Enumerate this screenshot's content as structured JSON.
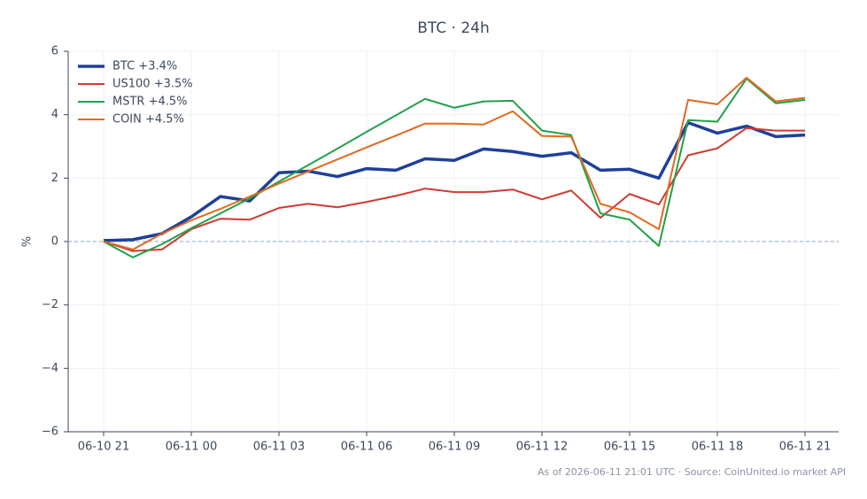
{
  "chart_data": {
    "type": "line",
    "title": "BTC · 24h",
    "ylabel": "%",
    "footnote": "As of 2026-06-11 21:01 UTC · Source: CoinUnited.io market API",
    "categories": [
      "06-10 21",
      null,
      null,
      "06-11 00",
      null,
      null,
      "06-11 03",
      null,
      null,
      "06-11 06",
      null,
      null,
      "06-11 09",
      null,
      null,
      "06-11 12",
      null,
      null,
      "06-11 15",
      null,
      null,
      "06-11 18",
      null,
      null,
      "06-11 21"
    ],
    "ylim": [
      -6,
      6
    ],
    "yticks": [
      {
        "value": -6,
        "label": "−6"
      },
      {
        "value": -4,
        "label": "−4"
      },
      {
        "value": -2,
        "label": "−2"
      },
      0,
      2,
      4,
      6
    ],
    "grid": true,
    "zero_line": true,
    "legend": "upper-left",
    "series": [
      {
        "name": "BTC +3.4%",
        "color": "#1f3f99",
        "line_width": 3.5,
        "values": [
          0.03,
          0.06,
          0.25,
          0.78,
          1.42,
          1.28,
          2.17,
          2.22,
          2.05,
          2.3,
          2.25,
          2.61,
          2.56,
          2.92,
          2.84,
          2.69,
          2.8,
          2.25,
          2.28,
          2.0,
          3.75,
          3.42,
          3.64,
          3.31,
          3.36
        ]
      },
      {
        "name": "US100 +3.5%",
        "color": "#d03a30",
        "line_width": 2,
        "values": [
          0,
          -0.3,
          -0.25,
          0.39,
          0.72,
          0.69,
          1.06,
          1.19,
          1.08,
          1.25,
          1.44,
          1.67,
          1.56,
          1.56,
          1.64,
          1.33,
          1.61,
          0.75,
          1.5,
          1.17,
          2.72,
          2.94,
          3.58,
          3.5,
          3.5
        ]
      },
      {
        "name": "MSTR +4.5%",
        "color": "#22a04b",
        "line_width": 2,
        "values": [
          0,
          -0.5,
          -0.08,
          0.42,
          0.89,
          1.36,
          1.89,
          2.41,
          2.93,
          3.46,
          3.98,
          4.5,
          4.22,
          4.42,
          4.44,
          3.5,
          3.36,
          0.89,
          0.69,
          -0.14,
          3.83,
          3.78,
          5.14,
          4.36,
          4.47
        ]
      },
      {
        "name": "COIN +4.5%",
        "color": "#e06a1e",
        "line_width": 2,
        "values": [
          0,
          -0.25,
          0.25,
          0.67,
          1.03,
          1.42,
          1.83,
          2.21,
          2.59,
          2.97,
          3.34,
          3.72,
          3.72,
          3.69,
          4.11,
          3.33,
          3.31,
          1.19,
          0.92,
          0.39,
          4.47,
          4.33,
          5.17,
          4.42,
          4.53
        ]
      }
    ]
  }
}
